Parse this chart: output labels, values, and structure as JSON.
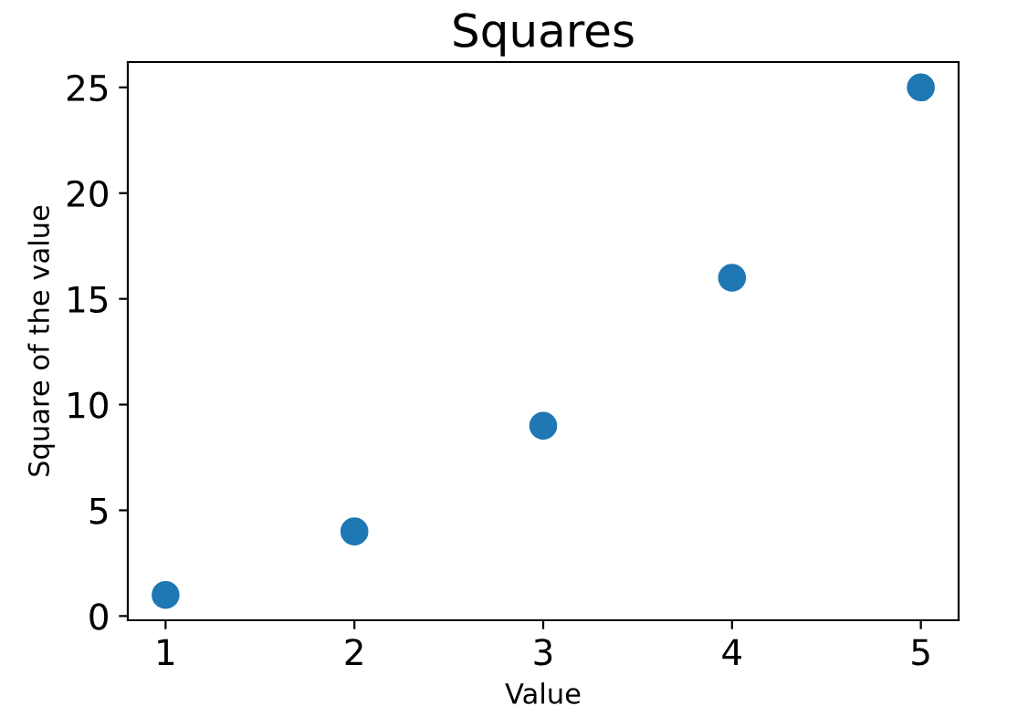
{
  "chart_data": {
    "type": "scatter",
    "title": "Squares",
    "xlabel": "Value",
    "ylabel": "Square of the value",
    "x": [
      1,
      2,
      3,
      4,
      5
    ],
    "series": [
      {
        "color": "#1f77b4",
        "values": [
          1,
          4,
          9,
          16,
          25
        ]
      }
    ],
    "xlim": [
      0.8,
      5.2
    ],
    "ylim": [
      -0.2,
      26.2
    ],
    "xticks": [
      1,
      2,
      3,
      4,
      5
    ],
    "yticks": [
      0,
      5,
      10,
      15,
      20,
      25
    ],
    "marker": "circle",
    "grid": false,
    "legend": false
  }
}
